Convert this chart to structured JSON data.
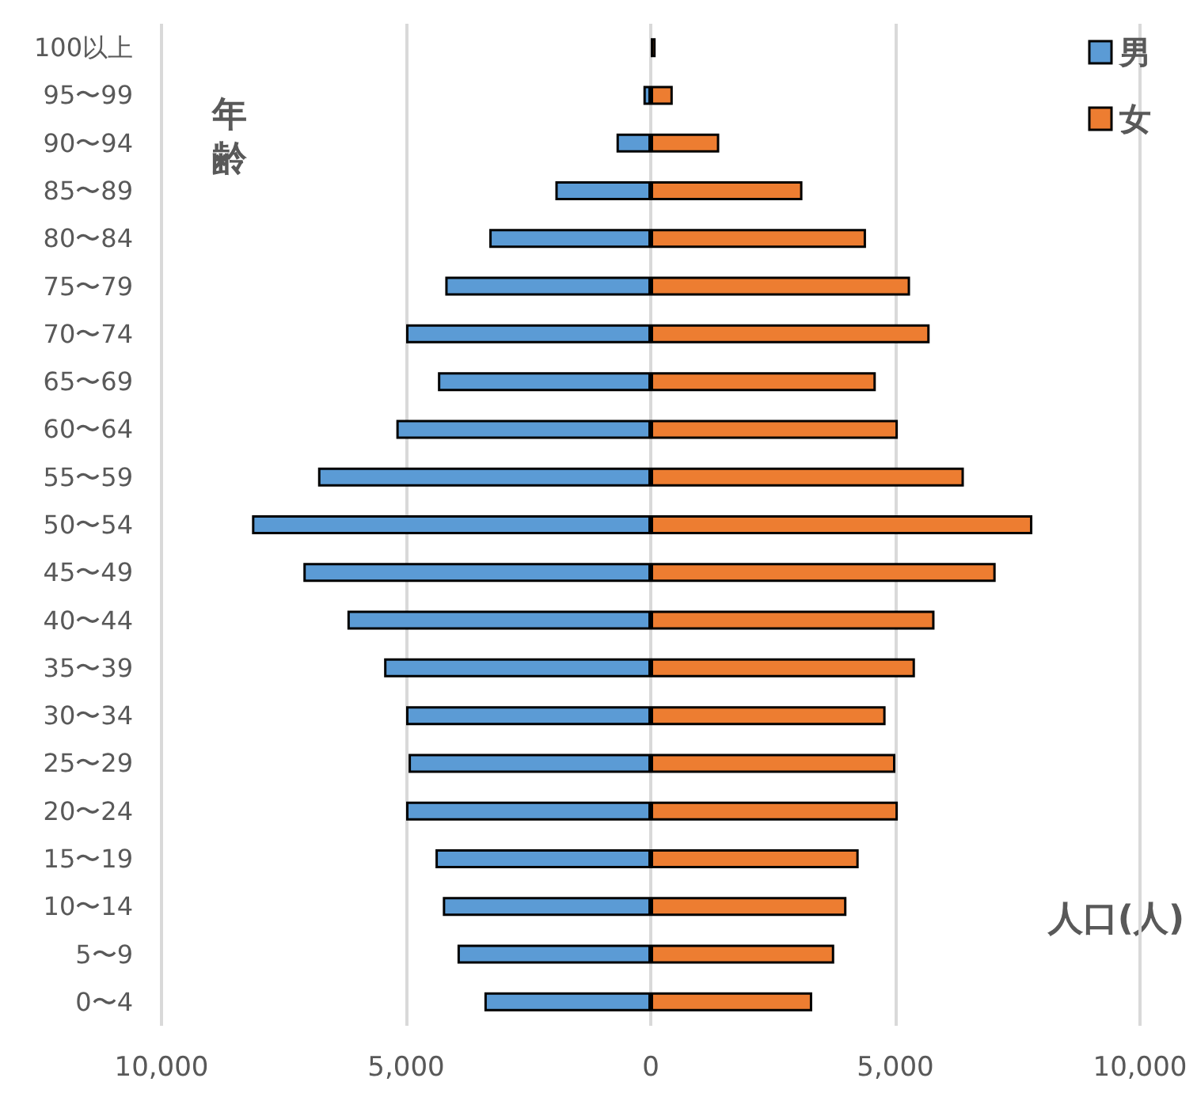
{
  "chart_data": {
    "type": "bar",
    "orientation": "horizontal",
    "stacked": true,
    "xlabel": "人口(人)",
    "ylabel": "年齢",
    "categories": [
      "100以上",
      "95〜99",
      "90〜94",
      "85〜89",
      "80〜84",
      "75〜79",
      "70〜74",
      "65〜69",
      "60〜64",
      "55〜59",
      "50〜54",
      "45〜49",
      "40〜44",
      "35〜39",
      "30〜34",
      "25〜29",
      "20〜24",
      "15〜19",
      "10〜14",
      "5〜9",
      "0〜4"
    ],
    "series": [
      {
        "name": "男",
        "color": "#5b9bd5",
        "values": [
          null,
          -150,
          -700,
          -1950,
          -3300,
          -4200,
          -5000,
          -4350,
          -5200,
          -6800,
          -8150,
          -7100,
          -6200,
          -5450,
          -5000,
          -4950,
          -5000,
          -4400,
          -4250,
          -3950,
          -3400
        ]
      },
      {
        "name": "女",
        "color": "#ed7d31",
        "values": [
          100,
          450,
          1400,
          3100,
          4400,
          5300,
          5700,
          4600,
          5050,
          6400,
          7800,
          7050,
          5800,
          5400,
          4800,
          5000,
          5050,
          4250,
          4000,
          3750,
          3300
        ]
      }
    ],
    "xlim": [
      -10000,
      10000
    ],
    "xticks": [
      {
        "value": -10000,
        "label": "10,000"
      },
      {
        "value": -5000,
        "label": "5,000"
      },
      0,
      {
        "value": 5000,
        "label": "5,000"
      },
      {
        "value": 10000,
        "label": "10,000"
      }
    ],
    "grid": "x",
    "legend": "top right"
  }
}
